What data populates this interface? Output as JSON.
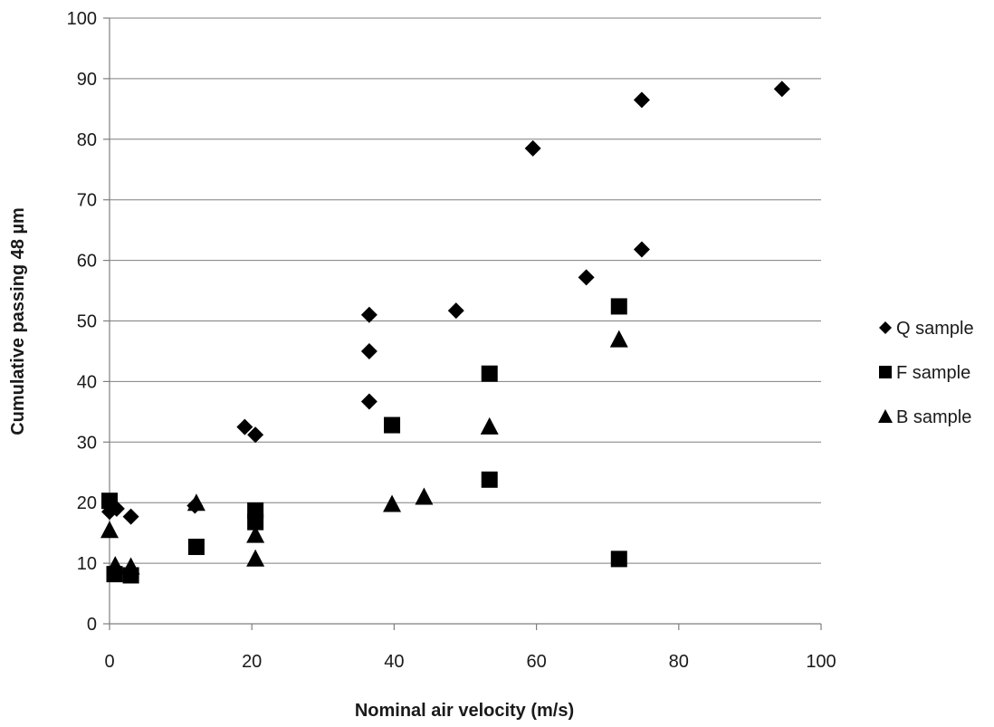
{
  "chart_data": {
    "type": "scatter",
    "title": "",
    "xlabel": "Nominal air velocity (m/s)",
    "ylabel": "Cumulative passing 48 µm",
    "xlim": [
      0,
      100
    ],
    "ylim": [
      0,
      100
    ],
    "x_ticks": [
      0,
      20,
      40,
      60,
      80,
      100
    ],
    "y_ticks": [
      0,
      10,
      20,
      30,
      40,
      50,
      60,
      70,
      80,
      90,
      100
    ],
    "grid": "horizontal",
    "legend_position": "right",
    "series": [
      {
        "name": "Q sample",
        "marker": "diamond",
        "color": "#000000",
        "points": [
          [
            0,
            18.5
          ],
          [
            1,
            19
          ],
          [
            3,
            17.7
          ],
          [
            12,
            19.5
          ],
          [
            19,
            32.5
          ],
          [
            20.5,
            31.2
          ],
          [
            36.5,
            51
          ],
          [
            36.5,
            45
          ],
          [
            36.5,
            36.7
          ],
          [
            48.7,
            51.7
          ],
          [
            59.5,
            78.5
          ],
          [
            67,
            57.2
          ],
          [
            74.8,
            86.5
          ],
          [
            74.8,
            61.8
          ],
          [
            94.5,
            88.3
          ]
        ]
      },
      {
        "name": "F sample",
        "marker": "square",
        "color": "#000000",
        "points": [
          [
            0,
            20.3
          ],
          [
            0.7,
            8.2
          ],
          [
            3,
            8
          ],
          [
            12.2,
            12.7
          ],
          [
            20.5,
            18.7
          ],
          [
            20.5,
            16.8
          ],
          [
            39.7,
            32.8
          ],
          [
            53.4,
            41.3
          ],
          [
            53.4,
            23.8
          ],
          [
            71.6,
            52.4
          ],
          [
            71.6,
            10.7
          ]
        ]
      },
      {
        "name": "B sample",
        "marker": "triangle",
        "color": "#000000",
        "points": [
          [
            0,
            15.5
          ],
          [
            0.8,
            9.7
          ],
          [
            3,
            9.5
          ],
          [
            12.2,
            20
          ],
          [
            20.5,
            14.7
          ],
          [
            20.5,
            10.8
          ],
          [
            39.7,
            19.8
          ],
          [
            44.2,
            21
          ],
          [
            53.4,
            32.6
          ],
          [
            71.6,
            47
          ]
        ]
      }
    ]
  }
}
